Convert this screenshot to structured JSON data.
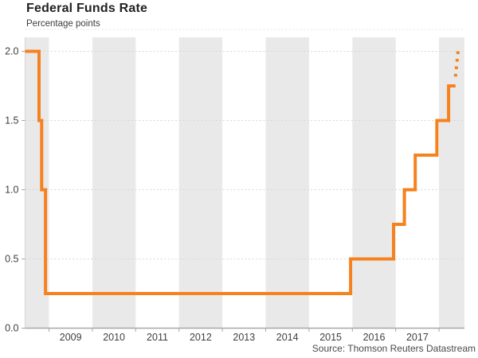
{
  "header": {
    "title": "Federal Funds Rate",
    "subtitle": "Percentage points"
  },
  "footer": {
    "source": "Source: Thomson Reuters Datastream"
  },
  "colors": {
    "line": "#F6821F",
    "band": "#E9E9E9",
    "gridline": "#D7D7D7",
    "top_border": "#E4E4E4",
    "axis": "#A8A8A8",
    "tick_text": "#3F3F3F",
    "background": "#FFFFFF"
  },
  "chart_data": {
    "type": "line",
    "subtype": "step",
    "title": "Federal Funds Rate",
    "ylabel": "Percentage points",
    "xlabel": "",
    "legend": "none",
    "grid": "horizontal-dotted",
    "xlim_years": [
      2008.45,
      2018.58
    ],
    "ylim": [
      0,
      2.15
    ],
    "ytick_values": [
      0,
      0.5,
      1,
      1.5,
      2
    ],
    "ytick_labels": [
      "0.0",
      "0.5",
      "1.0",
      "1.5",
      "2.0"
    ],
    "xtick_years": [
      2009,
      2010,
      2011,
      2012,
      2013,
      2014,
      2015,
      2016,
      2017
    ],
    "xtick_labels": [
      "2009",
      "2010",
      "2011",
      "2012",
      "2013",
      "2014",
      "2015",
      "2016",
      "2017"
    ],
    "x_boundary_tick_years": [
      2009,
      2010,
      2011,
      2012,
      2013,
      2014,
      2015,
      2016,
      2017,
      2018
    ],
    "shaded_years": [
      2008,
      2010,
      2012,
      2014,
      2016,
      2018
    ],
    "series": [
      {
        "name": "federal-funds-rate",
        "style": "solid-step",
        "steps": [
          [
            2008.45,
            2.0
          ],
          [
            2008.77,
            1.5
          ],
          [
            2008.83,
            1.0
          ],
          [
            2008.92,
            0.25
          ],
          [
            2015.96,
            0.5
          ],
          [
            2016.95,
            0.75
          ],
          [
            2017.2,
            1.0
          ],
          [
            2017.45,
            1.25
          ],
          [
            2017.95,
            1.5
          ],
          [
            2018.22,
            1.75
          ]
        ],
        "solid_end_year": 2018.38
      },
      {
        "name": "federal-funds-rate-projection",
        "style": "dotted",
        "points": [
          [
            2018.44,
            2.0
          ],
          [
            2018.37,
            1.79
          ]
        ]
      }
    ]
  }
}
